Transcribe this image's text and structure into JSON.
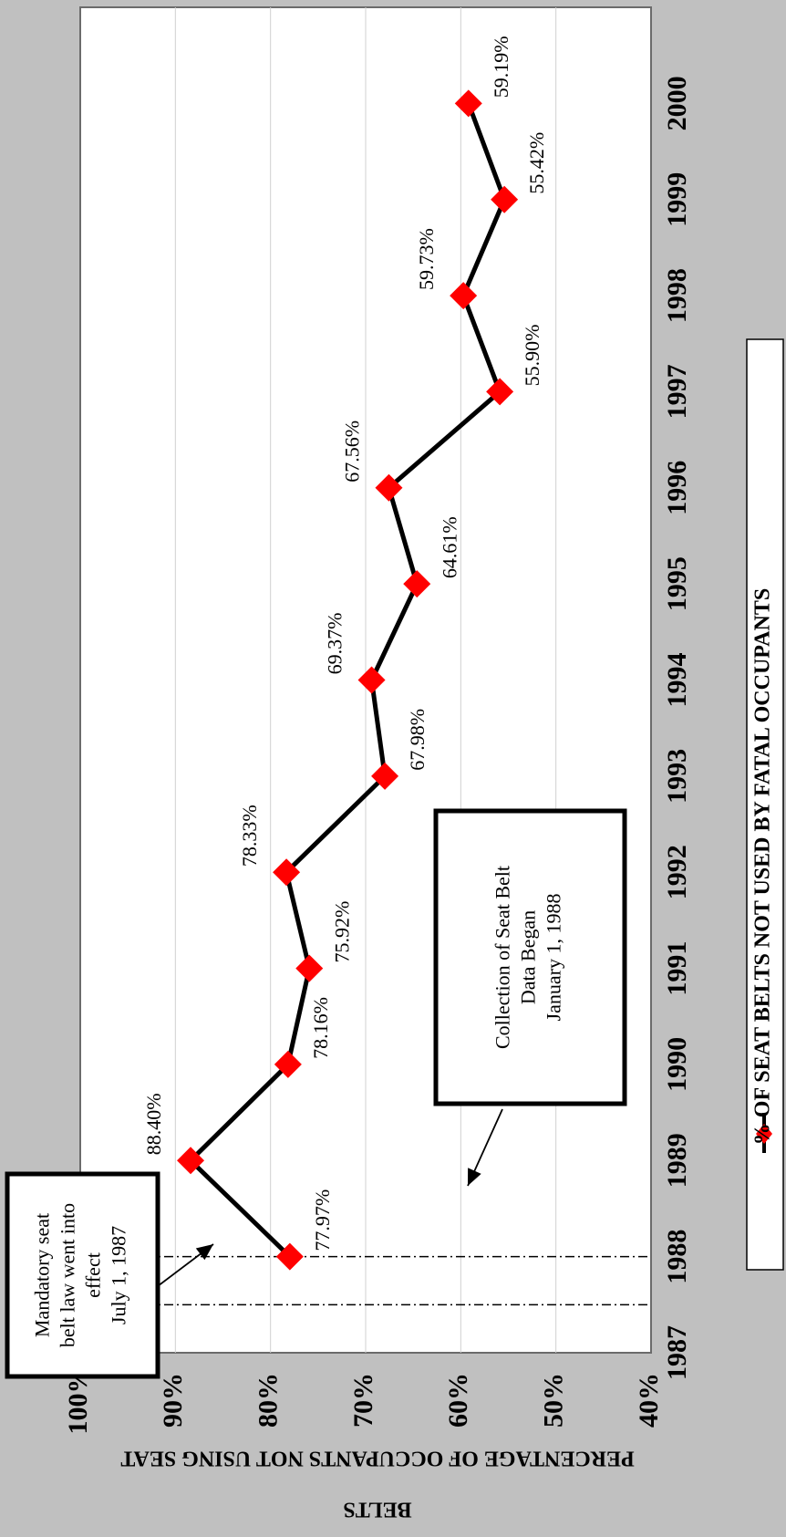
{
  "chart_data": {
    "type": "line",
    "x": [
      1988,
      1989,
      1990,
      1991,
      1992,
      1993,
      1994,
      1995,
      1996,
      1997,
      1998,
      1999,
      2000
    ],
    "series": [
      {
        "name": "% OF SEAT BELTS NOT USED BY FATAL OCCUPANTS",
        "values": [
          77.97,
          88.4,
          78.16,
          75.92,
          78.33,
          67.98,
          69.37,
          64.61,
          67.56,
          55.9,
          59.73,
          55.42,
          59.19
        ],
        "labels": [
          "77.97%",
          "88.40%",
          "78.16%",
          "75.92%",
          "78.33%",
          "67.98%",
          "69.37%",
          "64.61%",
          "67.56%",
          "55.90%",
          "59.73%",
          "55.42%",
          "59.19%"
        ],
        "color": "#ff0000",
        "line_color": "#000000"
      }
    ],
    "xlim": [
      1987,
      2001
    ],
    "xticks": [
      "1987",
      "1988",
      "1989",
      "1990",
      "1991",
      "1992",
      "1993",
      "1994",
      "1995",
      "1996",
      "1997",
      "1998",
      "1999",
      "2000"
    ],
    "ylim": [
      40,
      100
    ],
    "yticks": [
      "40%",
      "50%",
      "60%",
      "70%",
      "80%",
      "90%",
      "100%"
    ],
    "ylabel": "PERCENTAGE OF OCCUPANTS NOT USING SEAT BELTS",
    "ylabel_lines": [
      "PERCENTAGE OF OCCUPANTS NOT USING SEAT",
      "BELTS"
    ],
    "xlabel": "",
    "title": "",
    "grid": true,
    "legend_position": "bottom",
    "orientation": "rotated-90",
    "plot_background": "#ffffff",
    "page_background": "#c0c0c0",
    "annotations": [
      {
        "id": "seat-belt-law",
        "lines": [
          "Mandatory seat",
          "belt law went into",
          "effect",
          "July 1, 1987"
        ],
        "x_value": 1987.5
      },
      {
        "id": "data-collection",
        "lines": [
          "Collection of Seat Belt",
          "Data Began",
          "January 1, 1988"
        ],
        "x_value": 1988.0
      }
    ]
  }
}
